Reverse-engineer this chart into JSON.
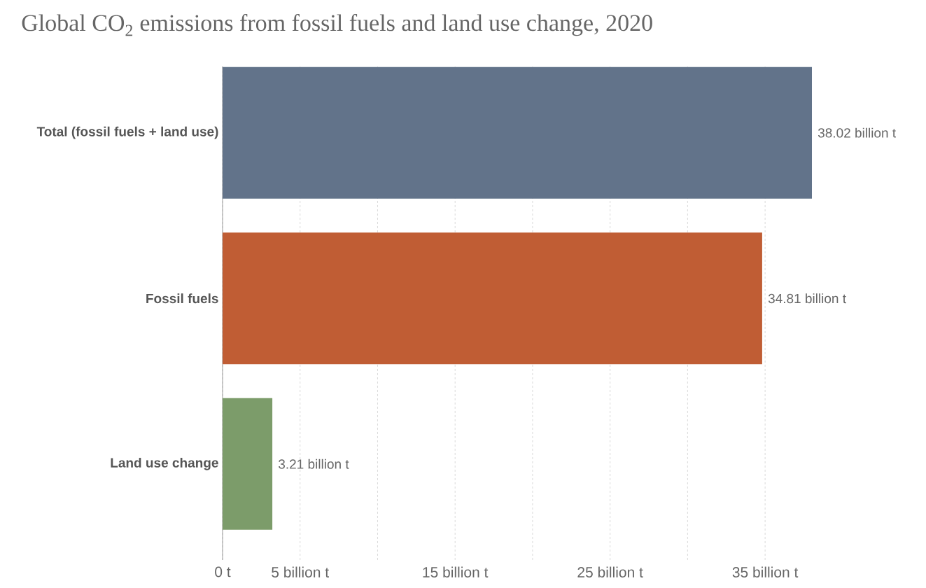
{
  "chart_data": {
    "type": "bar",
    "orientation": "horizontal",
    "title": "Global CO$_{2}$ emissions from fossil fuels and land use change, 2020",
    "categories": [
      "Total (fossil fuels + land use)",
      "Fossil fuels",
      "Land use change"
    ],
    "values": [
      38.02,
      34.81,
      3.21
    ],
    "colors": [
      "#62738a",
      "#c05d34",
      "#7c9c6a"
    ],
    "value_labels": [
      "38.02 billion t",
      "34.81 billion t",
      "3.21 billion t"
    ],
    "xlim": [
      0,
      38.02
    ],
    "xticks": [
      {
        "value": 0,
        "label": "0 t"
      },
      {
        "value": 5,
        "label": "5 billion t"
      },
      {
        "value": 10,
        "label": null
      },
      {
        "value": 15,
        "label": "15 billion t"
      },
      {
        "value": 20,
        "label": null
      },
      {
        "value": 25,
        "label": "25 billion t"
      },
      {
        "value": 30,
        "label": null
      },
      {
        "value": 35,
        "label": "35 billion t"
      }
    ],
    "grid": "x"
  }
}
